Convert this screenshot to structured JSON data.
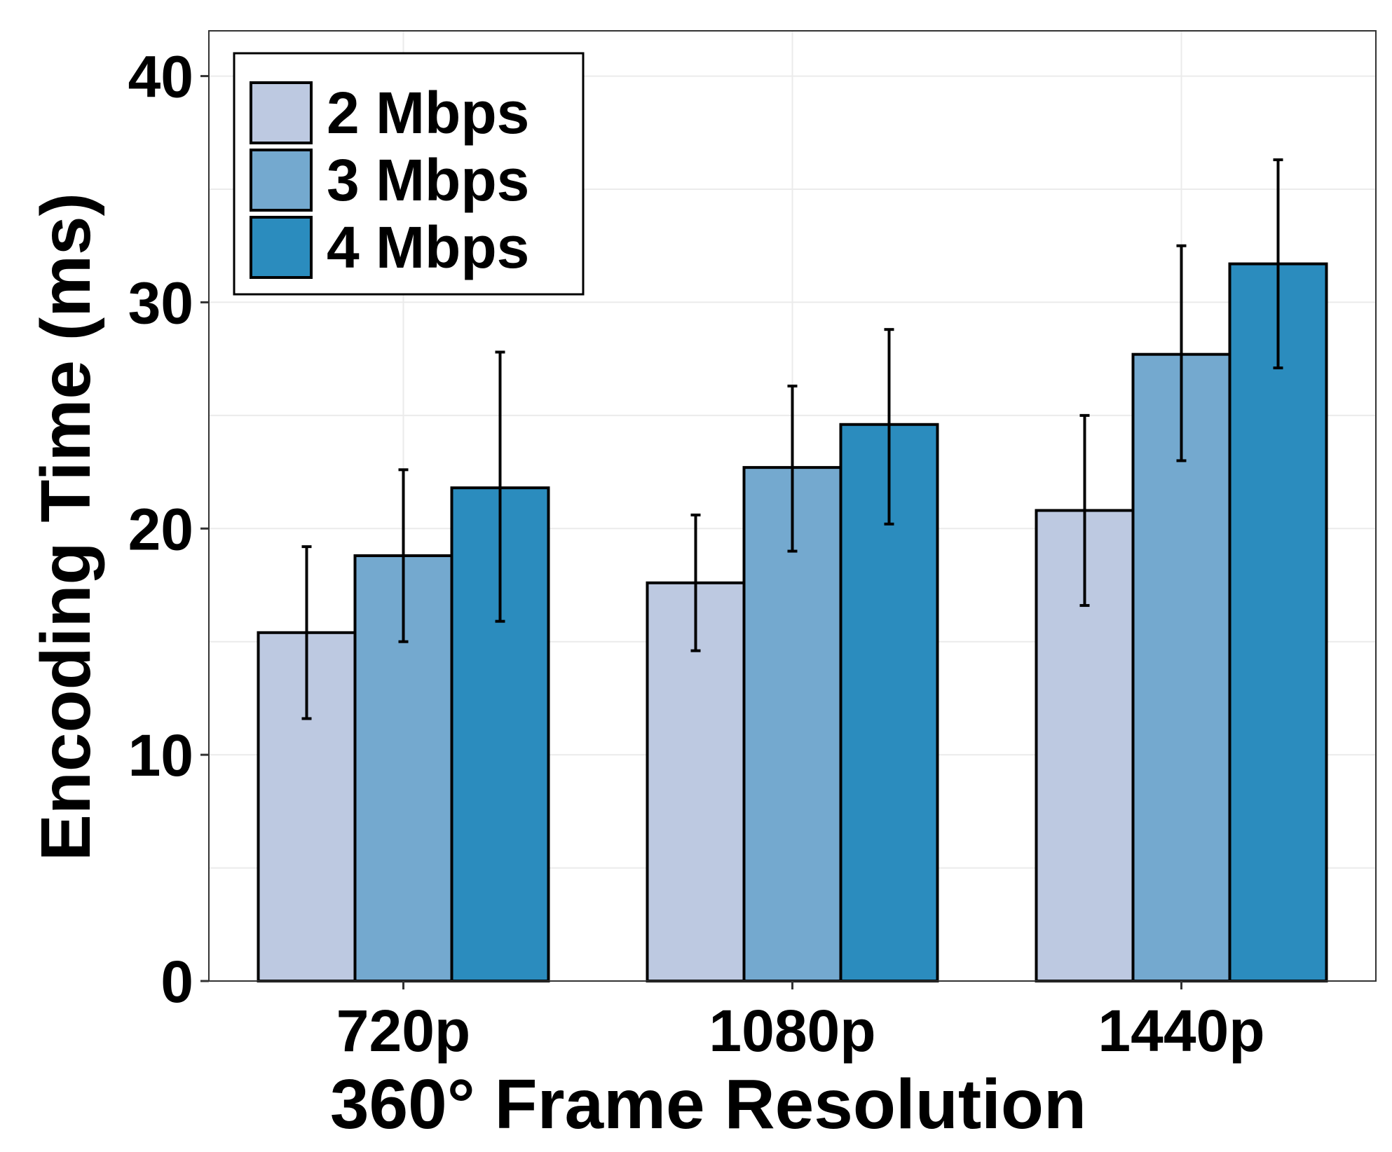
{
  "chart_data": {
    "type": "bar",
    "title": "",
    "xlabel": "360° Frame Resolution",
    "ylabel": "Encoding Time (ms)",
    "categories": [
      "720p",
      "1080p",
      "1440p"
    ],
    "ylim": [
      0,
      42
    ],
    "yticks": [
      0,
      10,
      20,
      30,
      40
    ],
    "grid": true,
    "legend_position": "top-left",
    "series": [
      {
        "name": "2 Mbps",
        "color": "#bdc9e1",
        "values": [
          15.4,
          17.6,
          20.8
        ],
        "error_low": [
          11.6,
          14.6,
          16.6
        ],
        "error_high": [
          19.2,
          20.6,
          25.0
        ]
      },
      {
        "name": "3 Mbps",
        "color": "#74a9cf",
        "values": [
          18.8,
          22.7,
          27.7
        ],
        "error_low": [
          15.0,
          19.0,
          23.0
        ],
        "error_high": [
          22.6,
          26.3,
          32.5
        ]
      },
      {
        "name": "4 Mbps",
        "color": "#2b8cbe",
        "values": [
          21.8,
          24.6,
          31.7
        ],
        "error_low": [
          15.9,
          20.2,
          27.1
        ],
        "error_high": [
          27.8,
          28.8,
          36.3
        ]
      }
    ]
  }
}
